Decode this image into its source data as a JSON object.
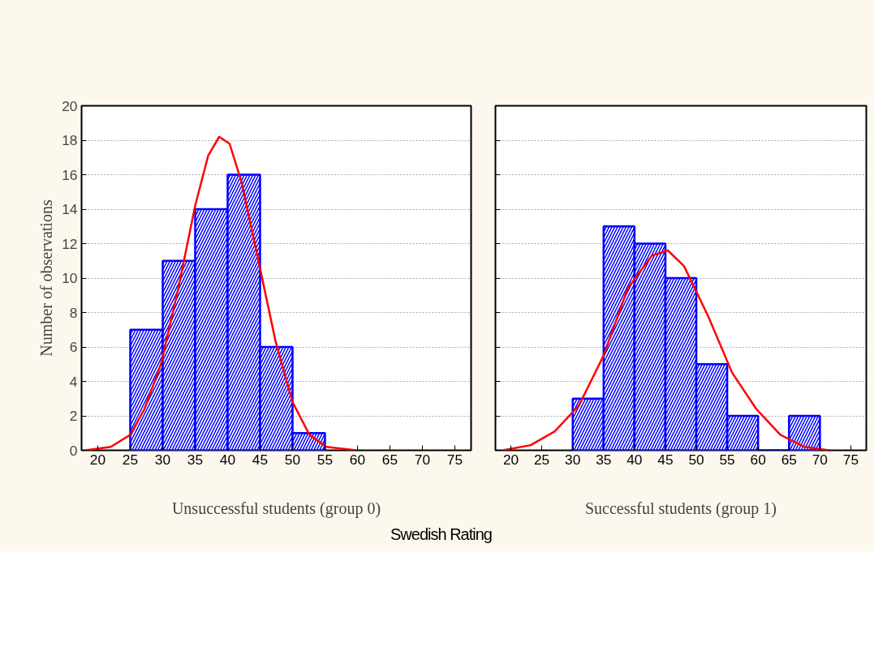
{
  "chart_data": [
    {
      "type": "histogram",
      "ylabel": "Number of observations",
      "xlabel": "Swedish Rating",
      "annotations": [
        "Unsuccessful students (group 0)"
      ],
      "bins": [
        25,
        30,
        35,
        40,
        45,
        50,
        55
      ],
      "values": [
        7,
        11,
        14,
        16,
        6,
        1
      ],
      "color": "#0000ff",
      "series": [
        {
          "type": "line",
          "color": "#ff0000",
          "x": [
            18.1,
            22,
            25,
            27.2,
            29.8,
            32.4,
            35,
            37,
            38.7,
            40.3,
            42.2,
            44.8,
            47.4,
            50,
            52.6,
            55.2,
            59.8
          ],
          "values": [
            0,
            0.2,
            0.9,
            2.4,
            5.1,
            9.4,
            14.2,
            17.1,
            18.2,
            17.8,
            15.5,
            10.9,
            6.3,
            2.8,
            0.9,
            0.2,
            0
          ]
        }
      ],
      "xlim": [
        17.5,
        77.5
      ],
      "ylim": [
        0,
        20
      ],
      "xticks": [
        20,
        25,
        30,
        35,
        40,
        45,
        50,
        55,
        60,
        65,
        70,
        75
      ],
      "yticks": [
        0,
        2,
        4,
        6,
        8,
        10,
        12,
        14,
        16,
        18,
        20
      ],
      "grid": "y"
    },
    {
      "type": "histogram",
      "annotations": [
        "Successful students (group 1)"
      ],
      "bins": [
        30,
        35,
        40,
        45,
        50,
        55,
        60,
        65,
        70
      ],
      "values": [
        3,
        13,
        12,
        10,
        5,
        2,
        0,
        2
      ],
      "color": "#0000ff",
      "series": [
        {
          "type": "line",
          "color": "#ff0000",
          "x": [
            18.7,
            23.2,
            27.1,
            31,
            35,
            38.9,
            42.8,
            45.4,
            48,
            51.9,
            55.8,
            59.7,
            63.6,
            67.5,
            71.5
          ],
          "values": [
            0,
            0.3,
            1.1,
            2.6,
            5.5,
            9.4,
            11.3,
            11.6,
            10.7,
            7.8,
            4.5,
            2.4,
            0.9,
            0.2,
            0
          ]
        }
      ],
      "xlim": [
        17.5,
        77.5
      ],
      "ylim": [
        0,
        20
      ],
      "xticks": [
        20,
        25,
        30,
        35,
        40,
        45,
        50,
        55,
        60,
        65,
        70,
        75
      ],
      "yticks": [
        0,
        2,
        4,
        6,
        8,
        10,
        12,
        14,
        16,
        18,
        20
      ],
      "grid": "y",
      "tick_labels": "x"
    }
  ]
}
